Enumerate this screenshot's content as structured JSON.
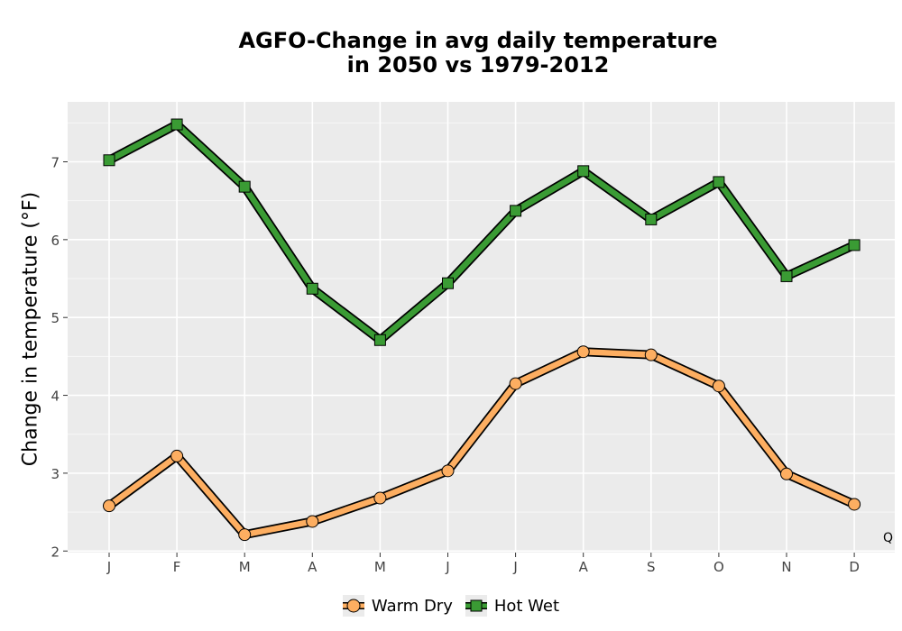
{
  "chart_data": {
    "type": "line",
    "title_lines": [
      "AGFO-Change in avg daily temperature",
      "in 2050 vs 1979-2012"
    ],
    "xlabel": "",
    "ylabel": "Change in temperature (°F)",
    "categories": [
      "J",
      "F",
      "M",
      "A",
      "M",
      "J",
      "J",
      "A",
      "S",
      "O",
      "N",
      "D"
    ],
    "ylim": [
      1.98,
      7.77
    ],
    "yticks": [
      2,
      3,
      4,
      5,
      6,
      7
    ],
    "grid": true,
    "legend_position": "bottom",
    "series": [
      {
        "name": "Warm Dry",
        "marker": "circle",
        "color": "#fdae61",
        "values": [
          2.58,
          3.22,
          2.21,
          2.38,
          2.68,
          3.03,
          4.15,
          4.56,
          4.52,
          4.12,
          2.99,
          2.6
        ]
      },
      {
        "name": "Hot Wet",
        "marker": "square",
        "color": "#3a9b34",
        "values": [
          7.02,
          7.48,
          6.68,
          5.37,
          4.71,
          5.44,
          6.37,
          6.88,
          6.26,
          6.74,
          5.53,
          5.93
        ]
      }
    ],
    "corner_label": "Q"
  }
}
